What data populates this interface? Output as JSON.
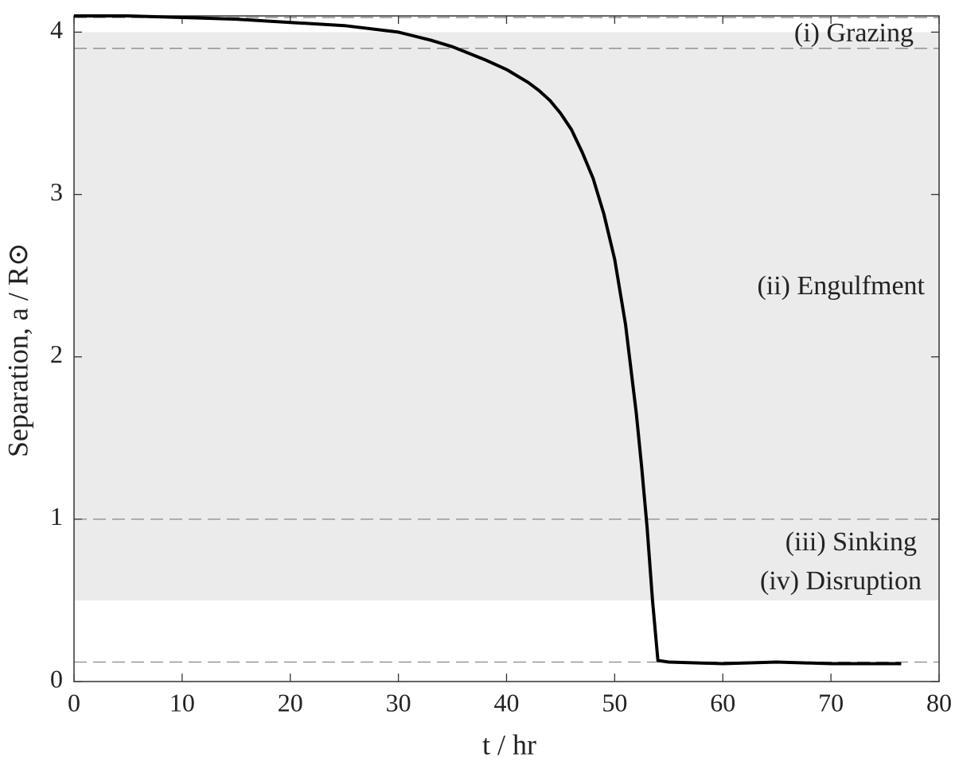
{
  "chart_data": {
    "type": "line",
    "xlabel": "t / hr",
    "ylabel": "Separation, a / R⊙",
    "x": [
      0,
      5,
      10,
      15,
      20,
      25,
      30,
      33,
      35,
      38,
      40,
      42,
      43,
      44,
      45,
      46,
      47,
      48,
      49,
      50,
      51,
      52,
      52.5,
      53,
      53.5,
      54,
      55,
      60,
      65,
      70,
      76.5
    ],
    "series": [
      {
        "name": "separation",
        "color": "#000000",
        "values": [
          4.1,
          4.1,
          4.09,
          4.08,
          4.06,
          4.04,
          4.0,
          3.95,
          3.91,
          3.83,
          3.77,
          3.69,
          3.64,
          3.58,
          3.5,
          3.4,
          3.26,
          3.1,
          2.88,
          2.6,
          2.2,
          1.65,
          1.32,
          0.95,
          0.5,
          0.13,
          0.12,
          0.11,
          0.12,
          0.11,
          0.11
        ]
      }
    ],
    "xlim": [
      0,
      80
    ],
    "ylim": [
      0,
      4.1
    ],
    "xticks": [
      0,
      10,
      20,
      30,
      40,
      50,
      60,
      70,
      80
    ],
    "yticks": [
      0,
      1,
      2,
      3,
      4
    ],
    "band": [
      0.5,
      4.0
    ],
    "band_color": "#ebebeb",
    "hlines": [
      4.09,
      3.9,
      1.0,
      0.12
    ],
    "annotations": [
      "(i) Grazing",
      "(ii) Engulfment",
      "(iii) Sinking",
      "(iv) Disruption"
    ]
  }
}
